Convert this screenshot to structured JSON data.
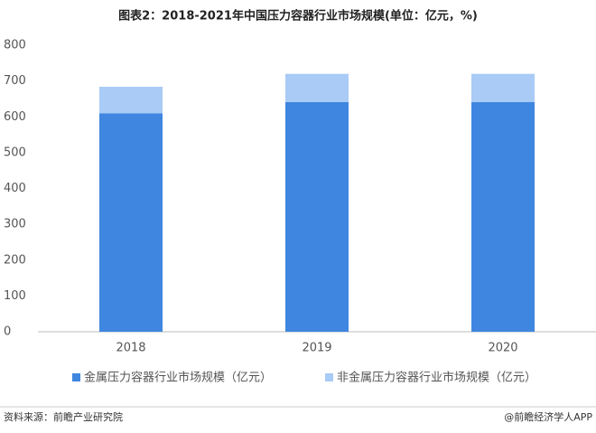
{
  "chart_data": {
    "type": "stacked_bar",
    "title": "图表2：2018-2021年中国压力容器行业市场规模(单位：亿元，%)",
    "categories": [
      "2018",
      "2019",
      "2020"
    ],
    "series": [
      {
        "name": "金属压力容器行业市场规模（亿元）",
        "color": "#3f86e0",
        "values": [
          610,
          641,
          641
        ]
      },
      {
        "name": "非金属压力容器行业市场规模（亿元）",
        "color": "#a9cbf5",
        "values": [
          74,
          79,
          79
        ]
      }
    ],
    "ylim": [
      0,
      800
    ],
    "yticks": [
      0,
      100,
      200,
      300,
      400,
      500,
      600,
      700,
      800
    ],
    "source": "资料来源：前瞻产业研究院",
    "credit": "@前瞻经济学人APP"
  }
}
